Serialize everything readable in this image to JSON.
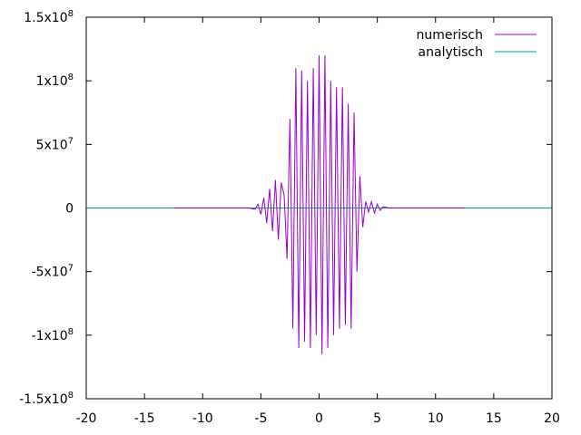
{
  "chart_data": {
    "type": "line",
    "title": "",
    "xlabel": "",
    "ylabel": "",
    "xlim": [
      -20,
      20
    ],
    "ylim": [
      -150000000,
      150000000
    ],
    "grid": false,
    "legend_position": "top-right",
    "x_ticks": [
      {
        "value": -20,
        "label": "-20"
      },
      {
        "value": -15,
        "label": "-15"
      },
      {
        "value": -10,
        "label": "-10"
      },
      {
        "value": -5,
        "label": "-5"
      },
      {
        "value": 0,
        "label": "0"
      },
      {
        "value": 5,
        "label": "5"
      },
      {
        "value": 10,
        "label": "10"
      },
      {
        "value": 15,
        "label": "15"
      },
      {
        "value": 20,
        "label": "20"
      }
    ],
    "y_ticks": [
      {
        "value": 150000000,
        "mantissa": "1.5x10",
        "exp": "8"
      },
      {
        "value": 100000000,
        "mantissa": "1x10",
        "exp": "8"
      },
      {
        "value": 50000000,
        "mantissa": "5x10",
        "exp": "7"
      },
      {
        "value": 0,
        "mantissa": "0",
        "exp": ""
      },
      {
        "value": -50000000,
        "mantissa": "-5x10",
        "exp": "7"
      },
      {
        "value": -100000000,
        "mantissa": "-1x10",
        "exp": "8"
      },
      {
        "value": -150000000,
        "mantissa": "-1.5x10",
        "exp": "8"
      }
    ],
    "series": [
      {
        "name": "numerisch",
        "color": "#9400d3",
        "x": [
          -12.5,
          -9,
          -6,
          -5.5,
          -5.25,
          -5.0,
          -4.75,
          -4.5,
          -4.25,
          -4.0,
          -3.75,
          -3.5,
          -3.25,
          -3.0,
          -2.75,
          -2.5,
          -2.25,
          -2.0,
          -1.75,
          -1.5,
          -1.25,
          -1.0,
          -0.75,
          -0.5,
          -0.25,
          0.0,
          0.25,
          0.5,
          0.75,
          1.0,
          1.25,
          1.5,
          1.75,
          2.0,
          2.25,
          2.5,
          2.75,
          3.0,
          3.25,
          3.5,
          3.75,
          4.0,
          4.25,
          4.5,
          4.75,
          5.0,
          5.25,
          5.5,
          6.0,
          9,
          12.5
        ],
        "y": [
          0,
          0,
          0,
          -1000000,
          3000000,
          -5000000,
          8000000,
          -12000000,
          15000000,
          -18000000,
          22000000,
          -25000000,
          20000000,
          10000000,
          -40000000,
          70000000,
          -95000000,
          110000000,
          -110000000,
          108000000,
          -105000000,
          100000000,
          -110000000,
          110000000,
          -100000000,
          120000000,
          -115000000,
          120000000,
          -110000000,
          100000000,
          -100000000,
          95000000,
          -95000000,
          95000000,
          -92000000,
          82000000,
          -95000000,
          75000000,
          -50000000,
          25000000,
          -15000000,
          5000000,
          -3000000,
          5000000,
          -4000000,
          3000000,
          -2000000,
          1000000,
          0,
          0,
          0
        ]
      },
      {
        "name": "analytisch",
        "color": "#009e9e",
        "x": [
          -20,
          20
        ],
        "y": [
          0,
          0
        ]
      }
    ]
  }
}
